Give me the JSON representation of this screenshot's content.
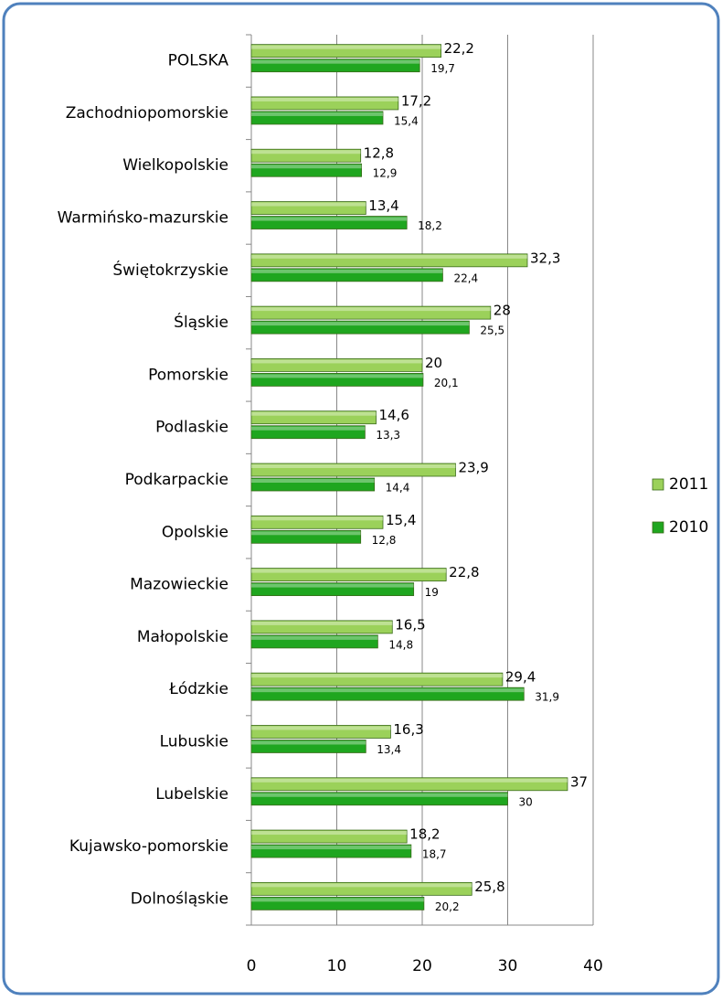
{
  "chart_data": {
    "type": "bar",
    "orientation": "horizontal",
    "categories": [
      "POLSKA",
      "Zachodniopomorskie",
      "Wielkopolskie",
      "Warmińsko-mazurskie",
      "Świętokrzyskie",
      "Śląskie",
      "Pomorskie",
      "Podlaskie",
      "Podkarpackie",
      "Opolskie",
      "Mazowieckie",
      "Małopolskie",
      "Łódzkie",
      "Lubuskie",
      "Lubelskie",
      "Kujawsko-pomorskie",
      "Dolnośląskie"
    ],
    "series": [
      {
        "name": "2011",
        "color": "#9bd15a",
        "values": [
          22.2,
          17.2,
          12.8,
          13.4,
          32.3,
          28,
          20,
          14.6,
          23.9,
          15.4,
          22.8,
          16.5,
          29.4,
          16.3,
          37,
          18.2,
          25.8
        ],
        "value_labels": [
          "22,2",
          "17,2",
          "12,8",
          "13,4",
          "32,3",
          "28",
          "20",
          "14,6",
          "23,9",
          "15,4",
          "22,8",
          "16,5",
          "29,4",
          "16,3",
          "37",
          "18,2",
          "25,8"
        ]
      },
      {
        "name": "2010",
        "color": "#1fa61f",
        "values": [
          19.7,
          15.4,
          12.9,
          18.2,
          22.4,
          25.5,
          20.1,
          13.3,
          14.4,
          12.8,
          19,
          14.8,
          31.9,
          13.4,
          30,
          18.7,
          20.2
        ],
        "value_labels": [
          "19,7",
          "15,4",
          "12,9",
          "18,2",
          "22,4",
          "25,5",
          "20,1",
          "13,3",
          "14,4",
          "12,8",
          "19",
          "14,8",
          "31,9",
          "13,4",
          "30",
          "18,7",
          "20,2"
        ]
      }
    ],
    "xlim": [
      0,
      40
    ],
    "xticks": [
      0,
      10,
      20,
      30,
      40
    ],
    "grid": true,
    "legend": "right"
  }
}
